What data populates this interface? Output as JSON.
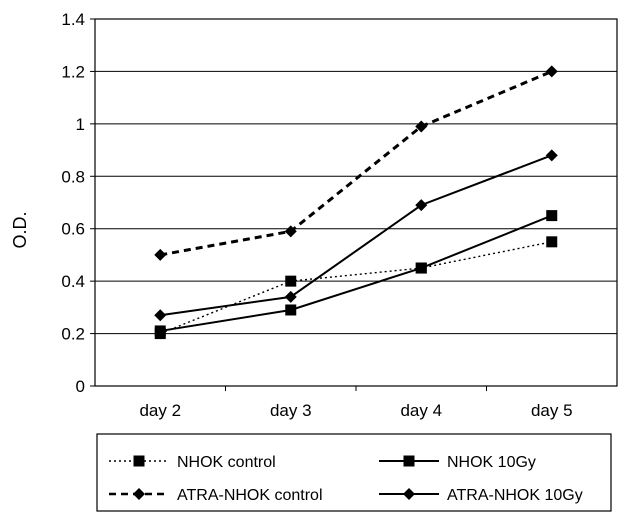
{
  "chart_data": {
    "type": "line",
    "title": "",
    "xlabel": "",
    "ylabel": "O.D.",
    "ylim": [
      0,
      1.4
    ],
    "ytick_step": 0.2,
    "yticks": [
      "0",
      "0.2",
      "0.4",
      "0.6",
      "0.8",
      "1",
      "1.2",
      "1.4"
    ],
    "categories": [
      "day 2",
      "day 3",
      "day 4",
      "day 5"
    ],
    "grid": "horizontal",
    "legend": "bottom",
    "series": [
      {
        "name": "NHOK control",
        "values": [
          0.2,
          0.4,
          0.45,
          0.55
        ],
        "marker": "square",
        "line": "dotted",
        "color": "#000000"
      },
      {
        "name": "NHOK 10Gy",
        "values": [
          0.21,
          0.29,
          0.45,
          0.65
        ],
        "marker": "square",
        "line": "solid",
        "color": "#000000"
      },
      {
        "name": "ATRA-NHOK control",
        "values": [
          0.5,
          0.59,
          0.99,
          1.2
        ],
        "marker": "diamond",
        "line": "dashed",
        "color": "#000000"
      },
      {
        "name": "ATRA-NHOK 10Gy",
        "values": [
          0.27,
          0.34,
          0.69,
          0.88
        ],
        "marker": "diamond",
        "line": "solid",
        "color": "#000000"
      }
    ]
  }
}
